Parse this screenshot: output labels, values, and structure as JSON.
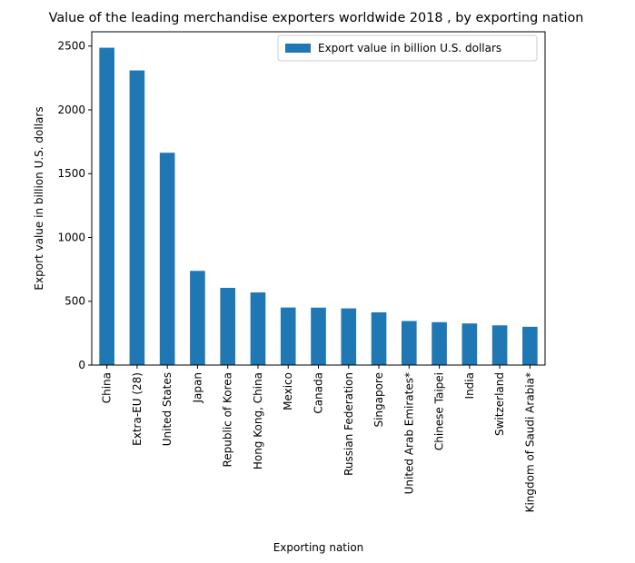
{
  "chart_data": {
    "type": "bar",
    "title": "Value of the leading merchandise exporters worldwide 2018 , by exporting nation",
    "xlabel": "Exporting nation",
    "ylabel": "Export value in billion U.S. dollars",
    "categories": [
      "China",
      "Extra-EU (28)",
      "United States",
      "Japan",
      "Republic of Korea",
      "Hong Kong, China",
      "Mexico",
      "Canada",
      "Russian Federation",
      "Singapore",
      "United Arab Emirates*",
      "Chinese Taipei",
      "India",
      "Switzerland",
      "Kingdom of Saudi Arabia*"
    ],
    "series": [
      {
        "name": "Export value in billion U.S. dollars",
        "values": [
          2487,
          2309,
          1664,
          738,
          605,
          569,
          451,
          450,
          444,
          413,
          345,
          336,
          326,
          311,
          300
        ],
        "color": "#1f77b4"
      }
    ],
    "ylim": [
      0,
      2612
    ],
    "yticks": [
      0,
      500,
      1000,
      1500,
      2000,
      2500
    ],
    "legend_position": "top-right",
    "grid": false
  }
}
